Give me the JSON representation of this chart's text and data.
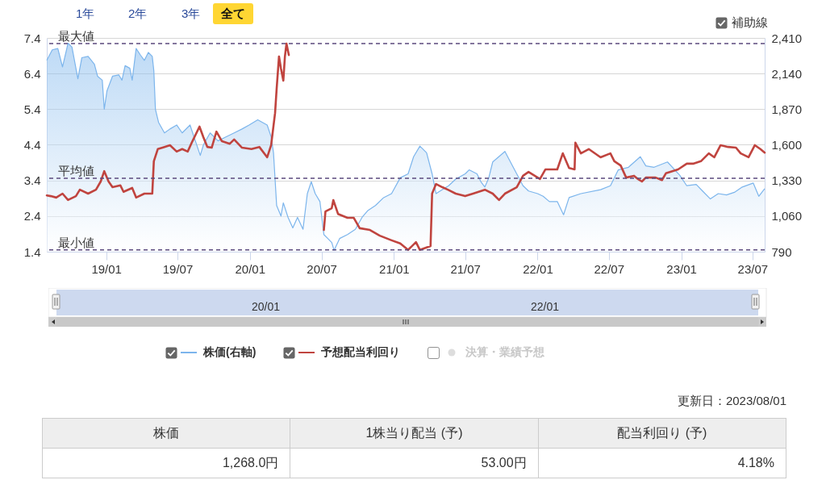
{
  "chart_data": [
    {
      "type": "line",
      "xlim": [
        "2018-08-03",
        "2023-08-01"
      ],
      "xticks": [
        {
          "value": "2019-01-01",
          "label": "19/01"
        },
        {
          "value": "2019-07-01",
          "label": "19/07"
        },
        {
          "value": "2020-01-01",
          "label": "20/01"
        },
        {
          "value": "2020-07-01",
          "label": "20/07"
        },
        {
          "value": "2021-01-01",
          "label": "21/01"
        },
        {
          "value": "2021-07-01",
          "label": "21/07"
        },
        {
          "value": "2022-01-01",
          "label": "22/01"
        },
        {
          "value": "2022-07-01",
          "label": "22/07"
        },
        {
          "value": "2023-01-01",
          "label": "23/01"
        },
        {
          "value": "2023-07-01",
          "label": "23/07"
        }
      ],
      "ylim": [
        1.4,
        7.4
      ],
      "yticks": [
        1.4,
        2.4,
        3.4,
        4.4,
        5.4,
        6.4,
        7.4
      ],
      "y2lim": [
        790,
        2410
      ],
      "y2ticks": [
        790,
        {
          "value": 1060,
          "label": "1,060"
        },
        {
          "value": 1330,
          "label": "1,330"
        },
        {
          "value": 1600,
          "label": "1,600"
        },
        {
          "value": 1870,
          "label": "1,870"
        },
        {
          "value": 2140,
          "label": "2,140"
        },
        {
          "value": 2410,
          "label": "2,410"
        }
      ],
      "grid": "y",
      "legend": "bottom",
      "series": [
        {
          "name": "株価(右軸)",
          "type": "area",
          "axis": "y2",
          "color": "#7cb5ec",
          "x": [
            "2018-08-03",
            "2018-08-17",
            "2018-08-31",
            "2018-09-12",
            "2018-09-26",
            "2018-10-06",
            "2018-10-21",
            "2018-10-31",
            "2018-11-16",
            "2018-12-02",
            "2018-12-10",
            "2018-12-22",
            "2018-12-27",
            "2019-01-03",
            "2019-01-17",
            "2019-02-02",
            "2019-02-10",
            "2019-02-18",
            "2019-03-02",
            "2019-03-08",
            "2019-03-18",
            "2019-03-29",
            "2019-04-08",
            "2019-04-18",
            "2019-04-28",
            "2019-05-02",
            "2019-05-06",
            "2019-05-14",
            "2019-05-29",
            "2019-06-12",
            "2019-06-29",
            "2019-07-13",
            "2019-08-02",
            "2019-08-12",
            "2019-08-28",
            "2019-09-05",
            "2019-09-22",
            "2019-10-12",
            "2019-11-01",
            "2019-11-22",
            "2019-12-12",
            "2019-12-30",
            "2020-01-21",
            "2020-02-14",
            "2020-02-24",
            "2020-03-01",
            "2020-03-09",
            "2020-03-20",
            "2020-03-26",
            "2020-04-07",
            "2020-04-19",
            "2020-05-01",
            "2020-05-15",
            "2020-05-26",
            "2020-06-05",
            "2020-06-15",
            "2020-06-27",
            "2020-07-07",
            "2020-07-17",
            "2020-07-27",
            "2020-08-02",
            "2020-08-16",
            "2020-09-05",
            "2020-09-25",
            "2020-10-12",
            "2020-10-26",
            "2020-11-15",
            "2020-12-06",
            "2020-12-26",
            "2021-01-17",
            "2021-02-06",
            "2021-02-20",
            "2021-03-08",
            "2021-03-25",
            "2021-04-08",
            "2021-04-18",
            "2021-05-04",
            "2021-05-20",
            "2021-06-07",
            "2021-07-01",
            "2021-07-11",
            "2021-07-31",
            "2021-08-10",
            "2021-08-20",
            "2021-08-30",
            "2021-09-09",
            "2021-10-10",
            "2021-10-24",
            "2021-11-09",
            "2021-11-25",
            "2021-12-09",
            "2022-01-01",
            "2022-01-15",
            "2022-01-31",
            "2022-02-20",
            "2022-03-08",
            "2022-03-22",
            "2022-04-21",
            "2022-06-10",
            "2022-07-05",
            "2022-07-25",
            "2022-08-20",
            "2022-09-19",
            "2022-10-03",
            "2022-10-24",
            "2022-11-27",
            "2022-12-28",
            "2023-01-15",
            "2023-02-08",
            "2023-02-24",
            "2023-03-16",
            "2023-04-05",
            "2023-04-26",
            "2023-05-16",
            "2023-06-05",
            "2023-07-03",
            "2023-07-17",
            "2023-08-01"
          ],
          "values": [
            2240,
            2320,
            2330,
            2190,
            2370,
            2340,
            2100,
            2260,
            2270,
            2210,
            2120,
            2090,
            1870,
            2010,
            2120,
            2130,
            2090,
            2200,
            2180,
            2090,
            2330,
            2280,
            2240,
            2300,
            2270,
            2160,
            1870,
            1770,
            1690,
            1720,
            1750,
            1690,
            1750,
            1660,
            1520,
            1600,
            1690,
            1630,
            1660,
            1690,
            1720,
            1750,
            1790,
            1750,
            1660,
            1540,
            1140,
            1060,
            1160,
            1050,
            970,
            1050,
            960,
            1230,
            1320,
            1230,
            1170,
            920,
            890,
            860,
            800,
            890,
            920,
            960,
            1050,
            1100,
            1140,
            1200,
            1230,
            1350,
            1380,
            1510,
            1590,
            1540,
            1380,
            1230,
            1260,
            1290,
            1340,
            1380,
            1410,
            1380,
            1320,
            1280,
            1350,
            1470,
            1550,
            1470,
            1380,
            1290,
            1250,
            1230,
            1210,
            1170,
            1170,
            1070,
            1200,
            1230,
            1260,
            1290,
            1410,
            1430,
            1510,
            1440,
            1430,
            1470,
            1370,
            1290,
            1300,
            1250,
            1190,
            1230,
            1220,
            1240,
            1280,
            1310,
            1210,
            1268
          ]
        },
        {
          "name": "予想配当利回り",
          "color": "#c0443f",
          "x": [
            "2018-08-03",
            "2018-08-13",
            "2018-08-27",
            "2018-09-12",
            "2018-09-26",
            "2018-10-16",
            "2018-10-26",
            "2018-11-16",
            "2018-12-06",
            "2018-12-18",
            "2018-12-27",
            "2019-01-07",
            "2019-01-17",
            "2019-02-06",
            "2019-02-14",
            "2019-03-08",
            "2019-03-18",
            "2019-04-08",
            "2019-04-28",
            "2019-05-02",
            "2019-05-12",
            "2019-05-29",
            "2019-06-12",
            "2019-06-29",
            "2019-07-13",
            "2019-07-27",
            "2019-08-08",
            "2019-08-26",
            "2019-09-05",
            "2019-09-15",
            "2019-09-26",
            "2019-10-08",
            "2019-10-22",
            "2019-11-11",
            "2019-11-22",
            "2019-12-12",
            "2020-01-05",
            "2020-01-25",
            "2020-02-14",
            "2020-02-24",
            "2020-03-05",
            "2020-03-09",
            "2020-03-15",
            "2020-03-20",
            "2020-03-26",
            "2020-03-30",
            "2020-04-03",
            "2020-04-09",
            "2020-05-20",
            "2020-07-07",
            "2020-07-11",
            "2020-07-27",
            "2020-07-31",
            "2020-08-12",
            "2020-09-05",
            "2020-09-21",
            "2020-10-06",
            "2020-11-01",
            "2020-11-26",
            "2020-12-26",
            "2021-01-17",
            "2021-02-06",
            "2021-02-26",
            "2021-03-08",
            "2021-04-04",
            "2021-04-08",
            "2021-04-18",
            "2021-05-04",
            "2021-05-18",
            "2021-06-07",
            "2021-07-01",
            "2021-07-21",
            "2021-08-20",
            "2021-09-09",
            "2021-09-25",
            "2021-10-10",
            "2021-11-09",
            "2021-11-25",
            "2021-12-09",
            "2022-01-07",
            "2022-01-21",
            "2022-02-20",
            "2022-03-06",
            "2022-03-22",
            "2022-04-05",
            "2022-04-07",
            "2022-04-21",
            "2022-05-11",
            "2022-06-10",
            "2022-07-05",
            "2022-07-15",
            "2022-07-31",
            "2022-08-14",
            "2022-09-03",
            "2022-09-13",
            "2022-09-23",
            "2022-10-03",
            "2022-10-28",
            "2022-11-13",
            "2022-11-23",
            "2022-12-24",
            "2023-01-15",
            "2023-01-31",
            "2023-02-20",
            "2023-03-12",
            "2023-03-26",
            "2023-04-11",
            "2023-04-30",
            "2023-05-20",
            "2023-06-01",
            "2023-06-21",
            "2023-07-07",
            "2023-07-21",
            "2023-08-01"
          ],
          "values": [
            2.98,
            2.96,
            2.92,
            3.03,
            2.85,
            2.96,
            3.14,
            3.03,
            3.14,
            3.37,
            3.66,
            3.37,
            3.21,
            3.26,
            3.08,
            3.19,
            2.92,
            3.03,
            3.03,
            3.94,
            4.28,
            4.34,
            4.39,
            4.21,
            4.28,
            4.21,
            4.5,
            4.91,
            4.61,
            4.34,
            4.32,
            4.77,
            4.5,
            4.43,
            4.55,
            4.32,
            4.28,
            4.34,
            4.05,
            4.39,
            5.29,
            5.97,
            6.88,
            6.54,
            6.2,
            6.88,
            7.24,
            6.92,
            null,
            2.01,
            2.53,
            2.62,
            2.85,
            2.46,
            2.35,
            2.35,
            2.06,
            2.01,
            1.85,
            1.72,
            1.63,
            1.45,
            1.67,
            1.45,
            1.56,
            3.03,
            3.3,
            3.21,
            3.14,
            3.03,
            2.96,
            3.03,
            3.14,
            3.03,
            2.85,
            3.03,
            3.21,
            3.53,
            3.64,
            3.44,
            3.71,
            3.71,
            4.16,
            3.75,
            3.71,
            4.46,
            4.16,
            4.28,
            4.05,
            4.16,
            3.94,
            3.82,
            3.48,
            3.53,
            3.44,
            3.37,
            3.48,
            3.48,
            3.41,
            3.6,
            3.71,
            3.87,
            3.87,
            3.94,
            4.16,
            4.05,
            4.39,
            4.34,
            4.32,
            4.16,
            4.05,
            4.39,
            4.28,
            4.18
          ]
        }
      ],
      "ref_lines": [
        {
          "axis": "y",
          "value": 7.24,
          "label": "最大値",
          "color": "#5b4a7e",
          "line_style": "dashed"
        },
        {
          "axis": "y",
          "value": 3.46,
          "label": "平均値",
          "color": "#5b4a7e",
          "line_style": "dashed"
        },
        {
          "axis": "y",
          "value": 1.45,
          "label": "最小値",
          "color": "#5b4a7e",
          "line_style": "dashed"
        }
      ],
      "annotations": [
        "1年",
        "2年",
        "3年",
        "全て",
        "補助線",
        "決算・業績予想",
        "20/01",
        "22/01"
      ]
    },
    {
      "type": "other",
      "annotations": [
        "更新日：2023/08/01",
        "株価",
        "1株当り配当 (予)",
        "配当利回り (予)",
        "1,268.0円",
        "53.00円",
        "4.18%"
      ]
    }
  ]
}
